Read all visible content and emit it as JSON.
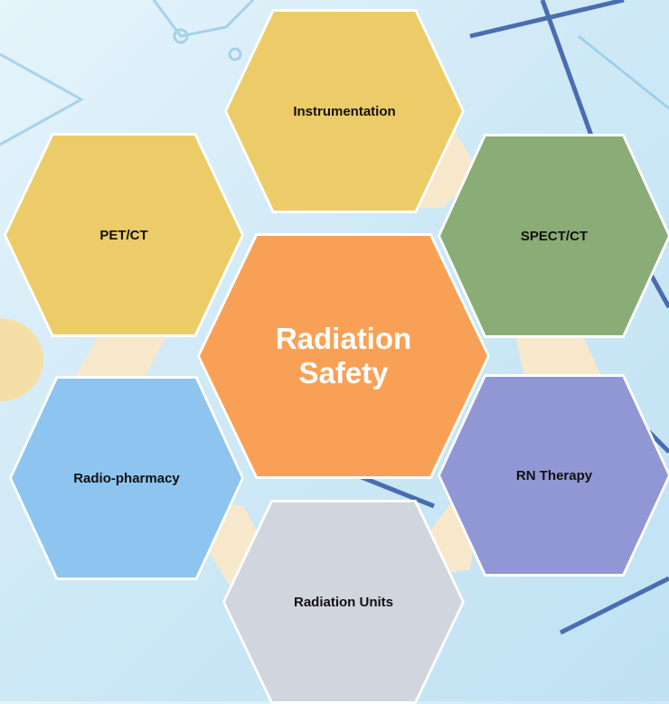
{
  "center": {
    "label": "Radiation Safety"
  },
  "nodes": [
    {
      "label": "Instrumentation"
    },
    {
      "label": "PET/CT"
    },
    {
      "label": "SPECT/CT"
    },
    {
      "label": "Radio-pharmacy"
    },
    {
      "label": "RN Therapy"
    },
    {
      "label": "Radiation Units"
    }
  ]
}
